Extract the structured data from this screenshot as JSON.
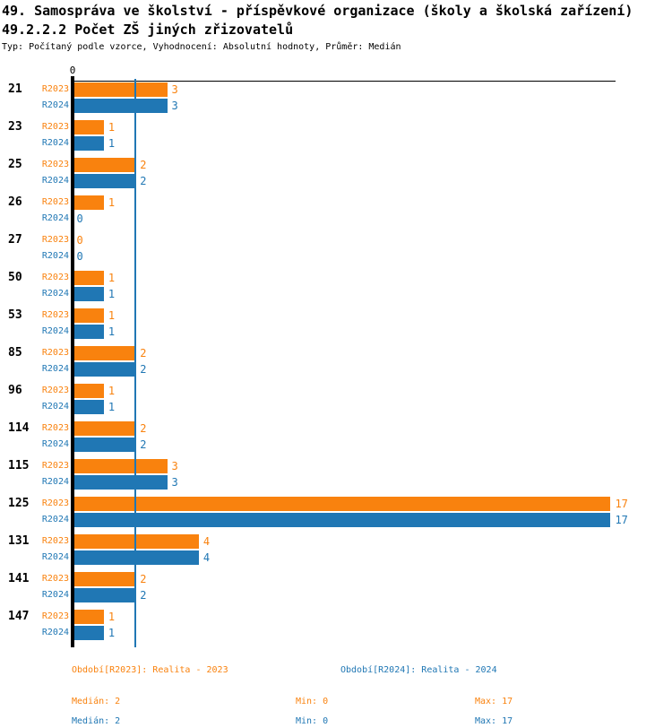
{
  "header": {
    "title_line1": "49. Samospráva ve školství - příspěvkové organizace (školy a školská zařízení)",
    "title_line2": "49.2.2.2 Počet ZŠ jiných zřizovatelů",
    "meta": "Typ: Počítaný podle vzorce, Vyhodnocení: Absolutní hodnoty, Průměr: Medián"
  },
  "colors": {
    "r2023": "#f9820e",
    "r2024": "#2077b4",
    "axis": "#000000"
  },
  "axis": {
    "zero_label": "0"
  },
  "chart_data": {
    "type": "bar",
    "orientation": "horizontal",
    "title": "49.2.2.2 Počet ZŠ jiných zřizovatelů",
    "categories": [
      "21",
      "23",
      "25",
      "26",
      "27",
      "50",
      "53",
      "85",
      "96",
      "114",
      "115",
      "125",
      "131",
      "141",
      "147"
    ],
    "series": [
      {
        "name": "R2023",
        "legend": "Období[R2023]: Realita - 2023",
        "color": "#f9820e",
        "values": [
          3,
          1,
          2,
          1,
          0,
          1,
          1,
          2,
          1,
          2,
          3,
          17,
          4,
          2,
          1
        ],
        "median": 2,
        "min": 0,
        "max": 17
      },
      {
        "name": "R2024",
        "legend": "Období[R2024]: Realita - 2024",
        "color": "#2077b4",
        "values": [
          3,
          1,
          2,
          0,
          0,
          1,
          1,
          2,
          1,
          2,
          3,
          17,
          4,
          2,
          1
        ],
        "median": 2,
        "min": 0,
        "max": 17
      }
    ],
    "xlim": [
      0,
      17.2
    ],
    "grid": false,
    "median_line_value": 2,
    "legend_position": "bottom"
  },
  "legend": {
    "periods": [
      {
        "label": "Období[R2023]: Realita - 2023"
      },
      {
        "label": "Období[R2024]: Realita - 2024"
      }
    ],
    "stats": [
      {
        "median_label": "Medián: 2",
        "min_label": "Min: 0",
        "max_label": "Max: 17"
      },
      {
        "median_label": "Medián: 2",
        "min_label": "Min: 0",
        "max_label": "Max: 17"
      }
    ]
  }
}
